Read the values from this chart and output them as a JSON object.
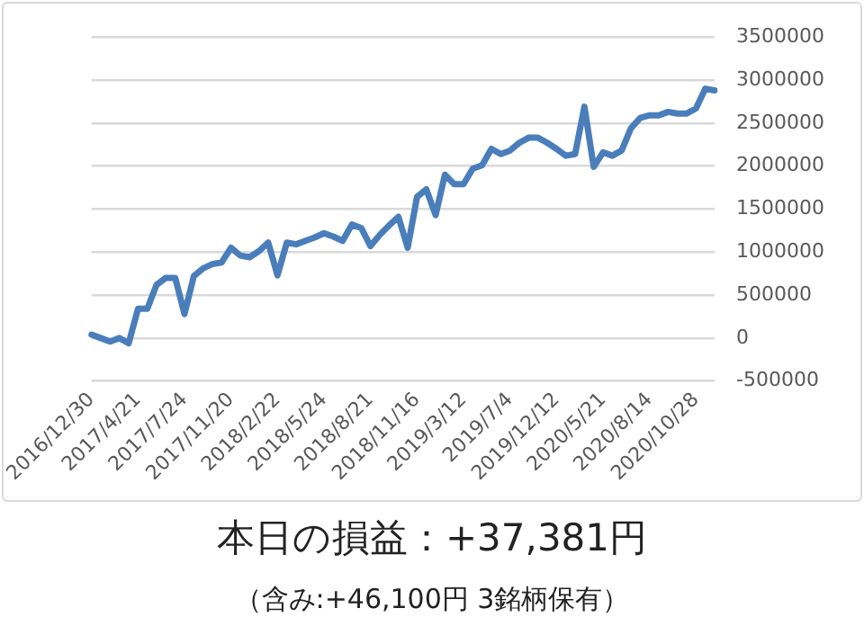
{
  "chart_data": {
    "type": "line",
    "categories": [
      "2016/12/30",
      null,
      null,
      null,
      null,
      "2017/4/21",
      null,
      null,
      null,
      null,
      "2017/7/24",
      null,
      null,
      null,
      null,
      "2017/11/20",
      null,
      null,
      null,
      null,
      "2018/2/22",
      null,
      null,
      null,
      null,
      "2018/5/24",
      null,
      null,
      null,
      null,
      "2018/8/21",
      null,
      null,
      null,
      null,
      "2018/11/16",
      null,
      null,
      null,
      null,
      "2019/3/12",
      null,
      null,
      null,
      null,
      "2019/7/4",
      null,
      null,
      null,
      null,
      "2019/12/12",
      null,
      null,
      null,
      null,
      "2020/5/21",
      null,
      null,
      null,
      null,
      "2020/8/14",
      null,
      null,
      null,
      null,
      "2020/10/28",
      null,
      null
    ],
    "series": [
      {
        "color": "#4a7ebb",
        "values": [
          40000,
          0,
          -40000,
          0,
          -60000,
          340000,
          340000,
          620000,
          700000,
          700000,
          280000,
          720000,
          810000,
          860000,
          880000,
          1050000,
          960000,
          940000,
          1010000,
          1110000,
          730000,
          1110000,
          1090000,
          1130000,
          1170000,
          1220000,
          1180000,
          1130000,
          1320000,
          1280000,
          1070000,
          1200000,
          1310000,
          1410000,
          1050000,
          1640000,
          1730000,
          1430000,
          1900000,
          1790000,
          1790000,
          1970000,
          2010000,
          2200000,
          2140000,
          2180000,
          2270000,
          2330000,
          2330000,
          2270000,
          2200000,
          2120000,
          2140000,
          2690000,
          1990000,
          2160000,
          2120000,
          2180000,
          2440000,
          2560000,
          2590000,
          2590000,
          2630000,
          2610000,
          2610000,
          2670000,
          2900000,
          2880000
        ]
      }
    ],
    "ylim": [
      -500000,
      3500000
    ],
    "yticks": [
      -500000,
      0,
      500000,
      1000000,
      1500000,
      2000000,
      2500000,
      3000000,
      3500000
    ],
    "grid": "y",
    "legend": false,
    "marker": "none",
    "line_style": "solid",
    "annotations": [
      "本日の損益：+37,381円",
      "（含み:+46,100円 3銘柄保有）"
    ]
  }
}
